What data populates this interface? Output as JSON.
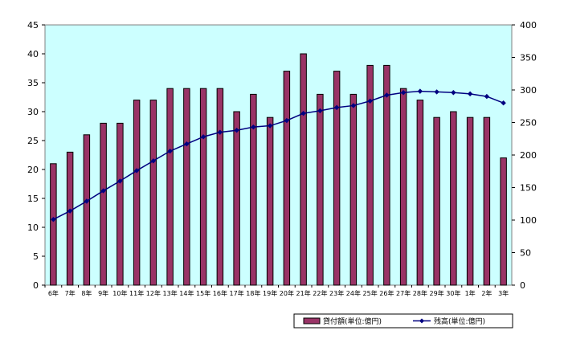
{
  "chart_data": {
    "type": "bar+line",
    "categories": [
      "6年",
      "7年",
      "8年",
      "9年",
      "10年",
      "11年",
      "12年",
      "13年",
      "14年",
      "15年",
      "16年",
      "17年",
      "18年",
      "19年",
      "20年",
      "21年",
      "22年",
      "23年",
      "24年",
      "25年",
      "26年",
      "27年",
      "28年",
      "29年",
      "30年",
      "1年",
      "2年",
      "3年"
    ],
    "series": [
      {
        "name": "貸付額(単位:億円)",
        "type": "bar",
        "axis": "left",
        "color": "#993366",
        "values": [
          21,
          23,
          26,
          28,
          28,
          32,
          32,
          34,
          34,
          34,
          34,
          30,
          33,
          29,
          37,
          40,
          33,
          37,
          33,
          38,
          38,
          34,
          32,
          29,
          30,
          29,
          29,
          22
        ]
      },
      {
        "name": "残高(単位:億円)",
        "type": "line",
        "axis": "right",
        "color": "#000080",
        "values": [
          101,
          114,
          129,
          145,
          160,
          176,
          191,
          206,
          217,
          228,
          235,
          238,
          243,
          245,
          253,
          264,
          268,
          273,
          276,
          283,
          292,
          296,
          298,
          297,
          296,
          294,
          290,
          280
        ]
      }
    ],
    "y_left": {
      "range": [
        0,
        45
      ],
      "ticks": [
        "0",
        "5",
        "10",
        "15",
        "20",
        "25",
        "30",
        "35",
        "40",
        "45"
      ]
    },
    "y_right": {
      "range": [
        0,
        400
      ],
      "ticks": [
        "0",
        "50",
        "100",
        "150",
        "200",
        "250",
        "300",
        "350",
        "400"
      ]
    },
    "plot_background": "#ccffff",
    "grid": false,
    "legend_position": "bottom-right"
  }
}
